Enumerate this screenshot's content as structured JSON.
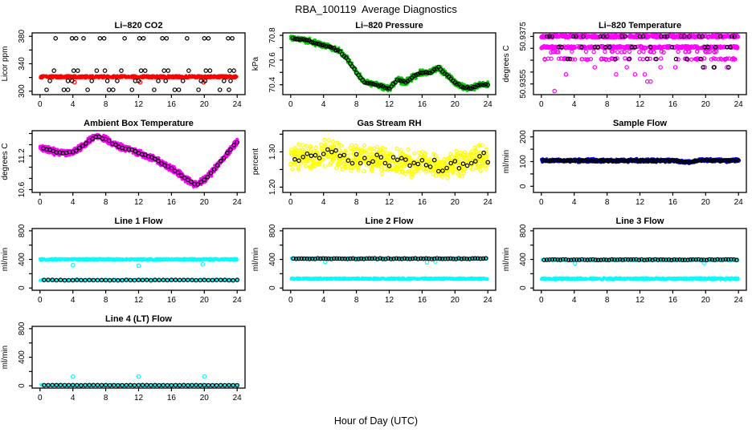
{
  "header": {
    "title": "RBA_100119  Average Diagnostics"
  },
  "footer": {
    "xlabel": "Hour of Day (UTC)"
  },
  "colors": {
    "black": "#000000",
    "red": "#FF0000",
    "green": "#00CD00",
    "magenta": "#FF00FF",
    "yellow": "#FFFF00",
    "blue": "#0000FF",
    "cyan": "#00FFFF"
  },
  "chart_data": {
    "type": "scatter",
    "title": "RBA_100119  Average Diagnostics",
    "xlabel": "Hour of Day (UTC)",
    "layout": {
      "rows": 4,
      "cols": 3,
      "grid": false,
      "legend": "none"
    },
    "xlim": [
      -0.96,
      24.96
    ],
    "x_ticks": [
      0,
      4,
      8,
      12,
      16,
      20,
      24
    ],
    "panels": [
      {
        "id": "li820-co2",
        "title": "Li–820 CO2",
        "ylabel": "Licor ppm",
        "ylim": [
          295,
          385
        ],
        "yticks": [
          {
            "v": 300,
            "l": "300"
          },
          {
            "v": 320,
            "l": ""
          },
          {
            "v": 340,
            "l": "340"
          },
          {
            "v": 360,
            "l": ""
          },
          {
            "v": 380,
            "l": "380"
          }
        ],
        "series": [
          {
            "kind": "band",
            "color": "red",
            "y": 321,
            "jitter": 2,
            "n": 900,
            "r": 1.7,
            "filled": true,
            "seed": 11
          },
          {
            "kind": "points",
            "color": "red",
            "y": 313,
            "x": [
              4.2,
              12.2,
              19.9
            ]
          },
          {
            "kind": "row",
            "color": "black",
            "y": 377,
            "x": [
              1.9,
              3.9,
              4.4,
              5.3,
              7.3,
              7.8,
              10.3,
              12.1,
              12.6,
              14.9,
              15.4,
              17.9,
              20.0,
              20.5,
              22.9,
              23.4
            ]
          },
          {
            "kind": "row",
            "color": "black",
            "y": 330,
            "x": [
              1.7,
              4.1,
              4.6,
              6.9,
              7.9,
              9.9,
              12.3,
              12.8,
              15.1,
              15.6,
              18.1,
              20.2,
              20.7,
              23.1,
              23.6
            ]
          },
          {
            "kind": "row",
            "color": "black",
            "y": 315,
            "x": [
              1.2,
              3.4,
              3.9,
              6.3,
              8.2,
              9.4,
              11.6,
              12.0,
              14.4,
              15.3,
              17.4,
              19.6,
              20.1,
              22.4,
              23.2
            ]
          },
          {
            "kind": "row",
            "color": "black",
            "y": 302,
            "x": [
              0.8,
              2.9,
              3.4,
              5.8,
              8.4,
              8.9,
              11.2,
              13.9,
              16.4,
              16.9,
              19.3,
              21.9,
              23.0
            ]
          }
        ]
      },
      {
        "id": "li820-pressure",
        "title": "Li–820 Pressure",
        "ylabel": "kPa",
        "ylim": [
          70.32,
          70.82
        ],
        "yticks": [
          {
            "v": 70.4,
            "l": "70.4"
          },
          {
            "v": 70.5,
            "l": ""
          },
          {
            "v": 70.6,
            "l": "70.6"
          },
          {
            "v": 70.7,
            "l": ""
          },
          {
            "v": 70.8,
            "l": "70.8"
          }
        ],
        "anchors": [
          70.78,
          70.77,
          70.76,
          70.74,
          70.72,
          70.7,
          70.67,
          70.6,
          70.5,
          70.42,
          70.41,
          70.39,
          70.37,
          70.44,
          70.42,
          70.47,
          70.5,
          70.5,
          70.54,
          70.48,
          70.42,
          70.38,
          70.37,
          70.4,
          70.4
        ],
        "series": [
          {
            "kind": "cloud",
            "color": "green",
            "jitter": 0.02,
            "n": 1000,
            "r": 1.9,
            "filled": true,
            "seed": 21
          },
          {
            "kind": "circles_from_anchors",
            "step": 0.25,
            "jitter": 0.005,
            "seed": 22
          }
        ]
      },
      {
        "id": "li820-temperature",
        "title": "Li–820 Temperature",
        "ylabel": "degrees C",
        "ylim": [
          50.93505,
          50.93765
        ],
        "yticks": [
          {
            "v": 50.9355,
            "l": "50.9355"
          },
          {
            "v": 50.936,
            "l": ""
          },
          {
            "v": 50.9365,
            "l": ""
          },
          {
            "v": 50.937,
            "l": ""
          },
          {
            "v": 50.9375,
            "l": "50.9375"
          }
        ],
        "series": [
          {
            "kind": "band",
            "color": "magenta",
            "y": 50.9375,
            "jitter": 4e-05,
            "n": 420,
            "r": 2.1,
            "seed": 31
          },
          {
            "kind": "band",
            "color": "magenta",
            "y": 50.93705,
            "jitter": 4e-05,
            "n": 300,
            "r": 2.1,
            "seed": 32
          },
          {
            "kind": "band",
            "color": "magenta",
            "y": 50.93685,
            "jitter": 2e-05,
            "n": 40,
            "r": 2.1,
            "seed": 33
          },
          {
            "kind": "band",
            "color": "magenta",
            "y": 50.93655,
            "jitter": 3e-05,
            "n": 70,
            "r": 2.1,
            "seed": 34
          },
          {
            "kind": "points",
            "color": "magenta",
            "y": 50.9362,
            "x": [
              6.5,
              10.4,
              14.5,
              16.3,
              19.9,
              21.1,
              22.6
            ]
          },
          {
            "kind": "points",
            "color": "magenta",
            "y": 50.9359,
            "x": [
              3.0,
              9.1,
              11.4,
              12.6
            ]
          },
          {
            "kind": "points",
            "color": "magenta",
            "y": 50.9356,
            "x": [
              12.9,
              13.3
            ]
          },
          {
            "kind": "points",
            "color": "magenta",
            "y": 50.9352,
            "x": [
              1.6
            ]
          },
          {
            "kind": "row",
            "color": "black",
            "y": 50.9375,
            "x": [
              0.7,
              1.0,
              1.3,
              3.9,
              4.2,
              5.1,
              7.2,
              7.5,
              8.0,
              9.8,
              10.2,
              12.0,
              12.4,
              14.6,
              15.0,
              15.3,
              17.0,
              17.4,
              18.0,
              19.2,
              19.6,
              21.8,
              23.2,
              23.5
            ]
          },
          {
            "kind": "row",
            "color": "black",
            "y": 50.93705,
            "x": [
              2.1,
              2.5,
              4.9,
              6.5,
              6.9,
              7.8,
              8.3,
              11.0,
              11.4,
              13.3,
              15.9,
              19.9,
              20.3,
              21.2,
              22.6,
              23.0
            ]
          },
          {
            "kind": "row",
            "color": "black",
            "y": 50.93655,
            "x": [
              3.2,
              3.5,
              9.0,
              10.7,
              12.9,
              14.0,
              16.4,
              17.7,
              19.4
            ]
          },
          {
            "kind": "row",
            "color": "black",
            "y": 50.9362,
            "x": [
              19.7,
              21.0,
              22.8
            ]
          }
        ]
      },
      {
        "id": "ambient-box-temperature",
        "title": "Ambient Box Temperature",
        "ylabel": "degrees C",
        "ylim": [
          10.55,
          11.65
        ],
        "yticks": [
          {
            "v": 10.6,
            "l": "10.6"
          },
          {
            "v": 10.8,
            "l": ""
          },
          {
            "v": 11.0,
            "l": ""
          },
          {
            "v": 11.2,
            "l": "11.2"
          },
          {
            "v": 11.4,
            "l": ""
          },
          {
            "v": 11.6,
            "l": ""
          }
        ],
        "anchors": [
          11.35,
          11.31,
          11.27,
          11.25,
          11.27,
          11.35,
          11.48,
          11.55,
          11.5,
          11.41,
          11.35,
          11.32,
          11.26,
          11.2,
          11.15,
          11.06,
          10.98,
          10.88,
          10.77,
          10.68,
          10.78,
          10.92,
          11.1,
          11.28,
          11.45
        ],
        "series": [
          {
            "kind": "cloud",
            "color": "magenta",
            "jitter": 0.05,
            "n": 1200,
            "r": 1.9,
            "filled": true,
            "seed": 41
          },
          {
            "kind": "circles_from_anchors",
            "step": 0.4,
            "jitter": 0.012,
            "seed": 42
          }
        ]
      },
      {
        "id": "gas-stream-rh",
        "title": "Gas Stream RH",
        "ylabel": "percent",
        "ylim": [
          1.185,
          1.36
        ],
        "yticks": [
          {
            "v": 1.2,
            "l": "1.20"
          },
          {
            "v": 1.25,
            "l": ""
          },
          {
            "v": 1.3,
            "l": "1.30"
          },
          {
            "v": 1.35,
            "l": ""
          }
        ],
        "anchors": [
          1.285,
          1.29,
          1.285,
          1.29,
          1.3,
          1.295,
          1.285,
          1.28,
          1.285,
          1.28,
          1.275,
          1.28,
          1.275,
          1.27,
          1.27,
          1.265,
          1.27,
          1.265,
          1.26,
          1.26,
          1.265,
          1.27,
          1.275,
          1.28,
          1.285
        ],
        "series": [
          {
            "kind": "cloud",
            "color": "yellow",
            "jitter": 0.03,
            "n": 620,
            "r": 2.0,
            "seed": 51
          },
          {
            "kind": "circles_from_anchors",
            "step": 0.5,
            "jitter": 0.015,
            "seed": 52
          }
        ]
      },
      {
        "id": "sample-flow",
        "title": "Sample Flow",
        "ylabel": "ml/min",
        "ylim": [
          -25,
          225
        ],
        "yticks": [
          {
            "v": 0,
            "l": "0"
          },
          {
            "v": 50,
            "l": ""
          },
          {
            "v": 100,
            "l": "100"
          },
          {
            "v": 150,
            "l": ""
          },
          {
            "v": 200,
            "l": "200"
          }
        ],
        "anchors": [
          104,
          104,
          104,
          104,
          104,
          104,
          104,
          104,
          104,
          104,
          104,
          104,
          104,
          104,
          104,
          104,
          104,
          100,
          97,
          104,
          106,
          104,
          104,
          104,
          105
        ],
        "series": [
          {
            "kind": "cloud",
            "color": "blue",
            "jitter": 6,
            "n": 800,
            "r": 1.9,
            "filled": true,
            "seed": 61
          },
          {
            "kind": "circles_from_anchors",
            "step": 0.25,
            "jitter": 2,
            "seed": 62
          }
        ]
      },
      {
        "id": "line-1-flow",
        "title": "Line 1 Flow",
        "ylabel": "ml/min",
        "ylim": [
          -32,
          832
        ],
        "yticks": [
          {
            "v": 0,
            "l": "0"
          },
          {
            "v": 200,
            "l": ""
          },
          {
            "v": 400,
            "l": "400"
          },
          {
            "v": 600,
            "l": ""
          },
          {
            "v": 800,
            "l": "800"
          }
        ],
        "series": [
          {
            "kind": "band",
            "color": "cyan",
            "y": 400,
            "jitter": 14,
            "n": 900,
            "r": 1.8,
            "filled": true,
            "seed": 71
          },
          {
            "kind": "points",
            "color": "cyan",
            "x": [
              4.0,
              12.0,
              19.8
            ],
            "yy": [
              320,
              312,
              330
            ]
          },
          {
            "kind": "band",
            "color": "cyan",
            "y": 112,
            "jitter": 10,
            "n": 500,
            "r": 1.8,
            "filled": true,
            "seed": 72
          },
          {
            "kind": "circles_const",
            "y": 110,
            "step": 0.5,
            "jitter": 3,
            "seed": 73
          }
        ]
      },
      {
        "id": "line-2-flow",
        "title": "Line 2 Flow",
        "ylabel": "ml/min",
        "ylim": [
          -32,
          832
        ],
        "yticks": [
          {
            "v": 0,
            "l": "0"
          },
          {
            "v": 200,
            "l": ""
          },
          {
            "v": 400,
            "l": "400"
          },
          {
            "v": 600,
            "l": ""
          },
          {
            "v": 800,
            "l": "800"
          }
        ],
        "series": [
          {
            "kind": "band",
            "color": "cyan",
            "y": 410,
            "jitter": 12,
            "n": 500,
            "r": 1.8,
            "filled": true,
            "seed": 81
          },
          {
            "kind": "band",
            "color": "cyan",
            "y": 130,
            "jitter": 13,
            "n": 700,
            "r": 1.8,
            "filled": true,
            "seed": 82
          },
          {
            "kind": "points",
            "color": "cyan",
            "x": [
              4.2,
              16.6,
              17.6
            ],
            "yy": [
              365,
              360,
              370
            ]
          },
          {
            "kind": "circles_const",
            "y": 410,
            "step": 0.33,
            "jitter": 5,
            "seed": 83
          }
        ]
      },
      {
        "id": "line-3-flow",
        "title": "Line 3 Flow",
        "ylabel": "ml/min",
        "ylim": [
          -32,
          832
        ],
        "yticks": [
          {
            "v": 0,
            "l": "0"
          },
          {
            "v": 200,
            "l": ""
          },
          {
            "v": 400,
            "l": "400"
          },
          {
            "v": 600,
            "l": ""
          },
          {
            "v": 800,
            "l": "800"
          }
        ],
        "series": [
          {
            "kind": "band",
            "color": "cyan",
            "y": 395,
            "jitter": 12,
            "n": 500,
            "r": 1.8,
            "filled": true,
            "seed": 91
          },
          {
            "kind": "band",
            "color": "cyan",
            "y": 130,
            "jitter": 15,
            "n": 700,
            "r": 1.8,
            "filled": true,
            "seed": 92
          },
          {
            "kind": "points",
            "color": "cyan",
            "x": [
              4.1,
              19.8
            ],
            "yy": [
              345,
              350
            ]
          },
          {
            "kind": "circles_const",
            "y": 395,
            "step": 0.33,
            "jitter": 5,
            "seed": 93
          }
        ]
      },
      {
        "id": "line-4-lt-flow",
        "title": "Line 4 (LT) Flow",
        "ylabel": "ml/min",
        "ylim": [
          -32,
          832
        ],
        "yticks": [
          {
            "v": 0,
            "l": "0"
          },
          {
            "v": 200,
            "l": ""
          },
          {
            "v": 400,
            "l": "400"
          },
          {
            "v": 600,
            "l": ""
          },
          {
            "v": 800,
            "l": "800"
          }
        ],
        "series": [
          {
            "kind": "band",
            "color": "cyan",
            "y": 8,
            "jitter": 7,
            "n": 600,
            "r": 1.8,
            "filled": true,
            "seed": 101
          },
          {
            "kind": "points",
            "color": "cyan",
            "x": [
              4.0,
              12.0,
              20.0
            ],
            "yy": [
              130,
              130,
              130
            ]
          },
          {
            "kind": "circles_const",
            "y": 8,
            "step": 0.5,
            "jitter": 2,
            "seed": 102
          }
        ]
      }
    ]
  }
}
